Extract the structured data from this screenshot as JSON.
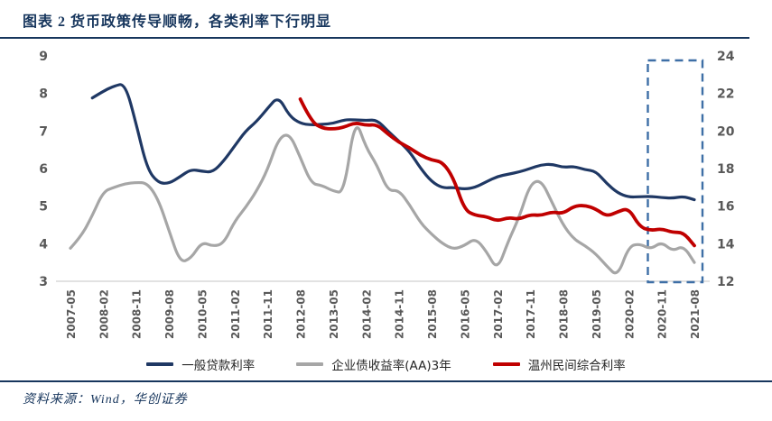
{
  "title": "图表 2  货币政策传导顺畅，各类利率下行明显",
  "source": "资料来源：Wind，华创证券",
  "colors": {
    "title_blue": "#17365D",
    "axis_text": "#595959",
    "axis_line": "#D9D9D9",
    "highlight_box": "#3E6FA6",
    "navy": "#1F3864",
    "gray": "#A6A6A6",
    "red": "#C00000"
  },
  "legend": [
    {
      "label": "一般贷款利率",
      "color": "#1F3864"
    },
    {
      "label": "企业债收益率(AA)3年",
      "color": "#A6A6A6"
    },
    {
      "label": "温州民间综合利率",
      "color": "#C00000"
    }
  ],
  "chart_data": {
    "type": "line",
    "title": "货币政策传导顺畅，各类利率下行明显",
    "categories": [
      "2007-05",
      "2007-08",
      "2007-11",
      "2008-02",
      "2008-05",
      "2008-08",
      "2008-11",
      "2009-02",
      "2009-05",
      "2009-08",
      "2009-11",
      "2010-02",
      "2010-05",
      "2010-08",
      "2010-11",
      "2011-02",
      "2011-05",
      "2011-08",
      "2011-11",
      "2012-02",
      "2012-05",
      "2012-08",
      "2012-11",
      "2013-02",
      "2013-05",
      "2013-08",
      "2013-11",
      "2014-02",
      "2014-05",
      "2014-08",
      "2014-11",
      "2015-02",
      "2015-05",
      "2015-08",
      "2015-11",
      "2016-02",
      "2016-05",
      "2016-08",
      "2016-11",
      "2017-02",
      "2017-05",
      "2017-08",
      "2017-11",
      "2018-02",
      "2018-05",
      "2018-08",
      "2018-11",
      "2019-02",
      "2019-05",
      "2019-08",
      "2019-11",
      "2020-02",
      "2020-05",
      "2020-08",
      "2020-11",
      "2021-02",
      "2021-05",
      "2021-08"
    ],
    "series": [
      {
        "name": "一般贷款利率",
        "axis": "left",
        "color": "#1F3864",
        "width": 3.2,
        "values": [
          null,
          null,
          7.88,
          8.06,
          8.2,
          8.27,
          7.2,
          6.0,
          5.62,
          5.6,
          5.78,
          5.98,
          5.93,
          5.9,
          6.2,
          6.6,
          7.0,
          7.25,
          7.6,
          7.93,
          7.4,
          7.2,
          7.16,
          7.18,
          7.2,
          7.3,
          7.3,
          7.28,
          7.3,
          7.0,
          6.73,
          6.45,
          6.0,
          5.65,
          5.48,
          5.5,
          5.45,
          5.5,
          5.65,
          5.79,
          5.85,
          5.91,
          6.0,
          6.1,
          6.12,
          6.03,
          6.06,
          5.97,
          5.93,
          5.6,
          5.35,
          5.24,
          5.25,
          5.26,
          5.23,
          5.21,
          5.26,
          5.17
        ]
      },
      {
        "name": "企业债收益率(AA)3年",
        "axis": "left",
        "color": "#A6A6A6",
        "width": 3.2,
        "values": [
          3.88,
          4.2,
          4.75,
          5.39,
          5.5,
          5.6,
          5.63,
          5.62,
          5.2,
          4.36,
          3.5,
          3.6,
          4.05,
          3.93,
          4.0,
          4.6,
          4.96,
          5.4,
          5.96,
          6.8,
          6.95,
          6.3,
          5.6,
          5.55,
          5.4,
          5.35,
          7.38,
          6.56,
          6.1,
          5.4,
          5.43,
          5.03,
          4.55,
          4.25,
          4.0,
          3.85,
          3.95,
          4.15,
          3.8,
          3.28,
          4.07,
          4.7,
          5.6,
          5.7,
          5.1,
          4.5,
          4.12,
          3.95,
          3.73,
          3.4,
          3.12,
          3.93,
          4.0,
          3.85,
          4.05,
          3.8,
          3.95,
          3.5
        ]
      },
      {
        "name": "温州民间综合利率",
        "axis": "right",
        "color": "#C00000",
        "width": 3.8,
        "values": [
          null,
          null,
          null,
          null,
          null,
          null,
          null,
          null,
          null,
          null,
          null,
          null,
          null,
          null,
          null,
          null,
          null,
          null,
          null,
          null,
          null,
          21.7,
          20.5,
          20.15,
          20.1,
          20.2,
          20.45,
          20.3,
          20.35,
          19.85,
          19.4,
          19.1,
          18.7,
          18.45,
          18.35,
          17.5,
          15.8,
          15.5,
          15.45,
          15.2,
          15.4,
          15.3,
          15.55,
          15.5,
          15.7,
          15.6,
          16.0,
          16.05,
          15.85,
          15.45,
          15.7,
          15.9,
          14.9,
          14.7,
          14.8,
          14.6,
          14.6,
          13.9
        ]
      }
    ],
    "left_axis": {
      "min": 3,
      "max": 9,
      "ticks": [
        9,
        8,
        7,
        6,
        5,
        4,
        3
      ]
    },
    "right_axis": {
      "min": 12,
      "max": 24,
      "ticks": [
        24,
        22,
        20,
        18,
        16,
        14,
        12
      ]
    },
    "x_tick_labels": [
      "2007-05",
      "2008-02",
      "2008-11",
      "2009-08",
      "2010-05",
      "2011-02",
      "2011-11",
      "2012-08",
      "2013-05",
      "2014-02",
      "2014-11",
      "2015-08",
      "2016-05",
      "2017-02",
      "2017-11",
      "2018-08",
      "2019-05",
      "2020-02",
      "2020-11",
      "2021-08"
    ],
    "x_tick_every_n_categories": 3,
    "highlight_box": {
      "from": "2020-08",
      "to": "2021-08"
    },
    "legend_position": "bottom",
    "grid": false
  }
}
